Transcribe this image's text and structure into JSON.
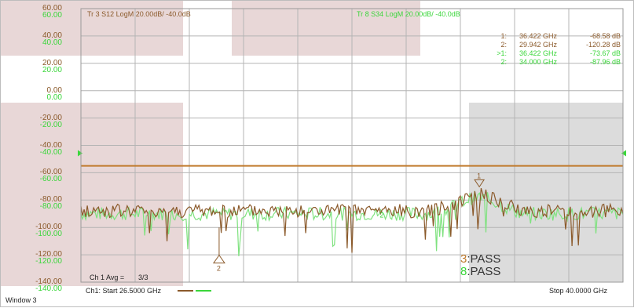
{
  "window": {
    "title": "Window 3"
  },
  "traces": {
    "tr3": {
      "label": "Tr 3  S12 LogM 20.00dB/ -40.0dB",
      "color": "#8b5a2b"
    },
    "tr8": {
      "label": "Tr 8  S34 LogM 20.00dB/ -40.0dB",
      "color": "#3bd63b"
    }
  },
  "y_ticks": {
    "brown": [
      "60.00",
      "40.00",
      "20.00",
      "0.00",
      "-20.00",
      "-40.00",
      "-60.00",
      "-80.00",
      "-100.00",
      "-120.00",
      "-140.00"
    ],
    "green": [
      "60.00",
      "40.00",
      "20.00",
      "0.00",
      "-20.00",
      "-40.00",
      "-60.00",
      "-80.00",
      "-100.00",
      "-120.00",
      "-140.00"
    ]
  },
  "markers": [
    {
      "id": "1:",
      "freq": "36.422 GHz",
      "value": "-68.58 dB",
      "trace": "brown"
    },
    {
      "id": "2:",
      "freq": "29.942 GHz",
      "value": "-120.28 dB",
      "trace": "brown"
    },
    {
      "id": ">1:",
      "freq": "36.422 GHz",
      "value": "-73.67 dB",
      "trace": "green"
    },
    {
      "id": "2:",
      "freq": "34.000 GHz",
      "value": "-87.96 dB",
      "trace": "green"
    }
  ],
  "marker_labels": {
    "m1": "1",
    "m2": "2",
    "m2_green": "2"
  },
  "limit_line_db": -55,
  "limit_color": "#c07a2c",
  "pass_status": [
    {
      "num": "3",
      "text": ":PASS",
      "trace": "brown"
    },
    {
      "num": "8",
      "text": ":PASS",
      "trace": "green"
    }
  ],
  "averaging": {
    "label": "Ch 1 Avg =",
    "value": "3/3"
  },
  "channel": {
    "start": "Ch1:  Start  26.5000 GHz",
    "stop": "Stop  40.0000 GHz"
  },
  "highlight_color": "#e8d7d7",
  "grey_region_color": "#dcdcdc",
  "grid_color": "#b4b4b4"
}
